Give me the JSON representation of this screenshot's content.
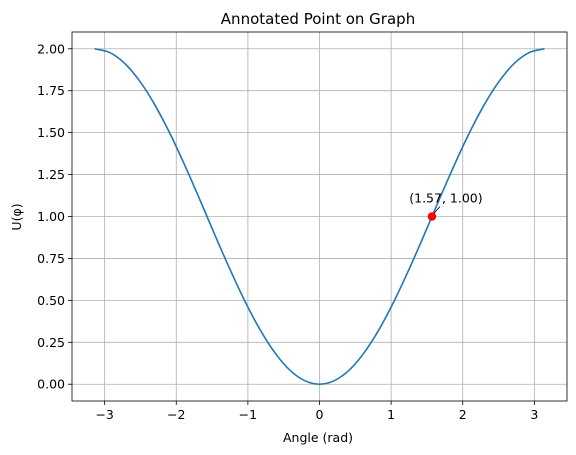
{
  "chart_data": {
    "type": "line",
    "title": "Annotated Point on Graph",
    "xlabel": "Angle (rad)",
    "ylabel": "U(φ)",
    "xlim": [
      -3.456,
      3.456
    ],
    "ylim": [
      -0.1,
      2.1
    ],
    "grid": true,
    "x_ticks": [
      {
        "value": -3,
        "label": "−3"
      },
      {
        "value": -2,
        "label": "−2"
      },
      {
        "value": -1,
        "label": "−1"
      },
      {
        "value": 0,
        "label": "0"
      },
      {
        "value": 1,
        "label": "1"
      },
      {
        "value": 2,
        "label": "2"
      },
      {
        "value": 3,
        "label": "3"
      }
    ],
    "y_ticks": [
      {
        "value": 0.0,
        "label": "0.00"
      },
      {
        "value": 0.25,
        "label": "0.25"
      },
      {
        "value": 0.5,
        "label": "0.50"
      },
      {
        "value": 0.75,
        "label": "0.75"
      },
      {
        "value": 1.0,
        "label": "1.00"
      },
      {
        "value": 1.25,
        "label": "1.25"
      },
      {
        "value": 1.5,
        "label": "1.50"
      },
      {
        "value": 1.75,
        "label": "1.75"
      },
      {
        "value": 2.0,
        "label": "2.00"
      }
    ],
    "series": [
      {
        "color": "#1f77b4",
        "x": [
          -3.1416,
          -2.9322,
          -2.7227,
          -2.5133,
          -2.3038,
          -2.0944,
          -1.885,
          -1.6755,
          -1.4661,
          -1.2566,
          -1.0472,
          -0.8378,
          -0.6283,
          -0.4189,
          -0.2094,
          0.0,
          0.2094,
          0.4189,
          0.6283,
          0.8378,
          1.0472,
          1.2566,
          1.4661,
          1.6755,
          1.885,
          2.0944,
          2.3038,
          2.5133,
          2.7227,
          2.9322,
          3.1416
        ],
        "y": [
          2.0,
          1.978,
          1.914,
          1.809,
          1.669,
          1.5,
          1.309,
          1.105,
          0.895,
          0.691,
          0.5,
          0.331,
          0.191,
          0.086,
          0.022,
          0.0,
          0.022,
          0.086,
          0.191,
          0.331,
          0.5,
          0.691,
          0.895,
          1.105,
          1.309,
          1.5,
          1.669,
          1.809,
          1.914,
          1.978,
          2.0
        ]
      }
    ],
    "highlight_point": {
      "x": 1.57,
      "y": 1.0,
      "color": "#ff0000",
      "label": "(1.57, 1.00)"
    }
  }
}
